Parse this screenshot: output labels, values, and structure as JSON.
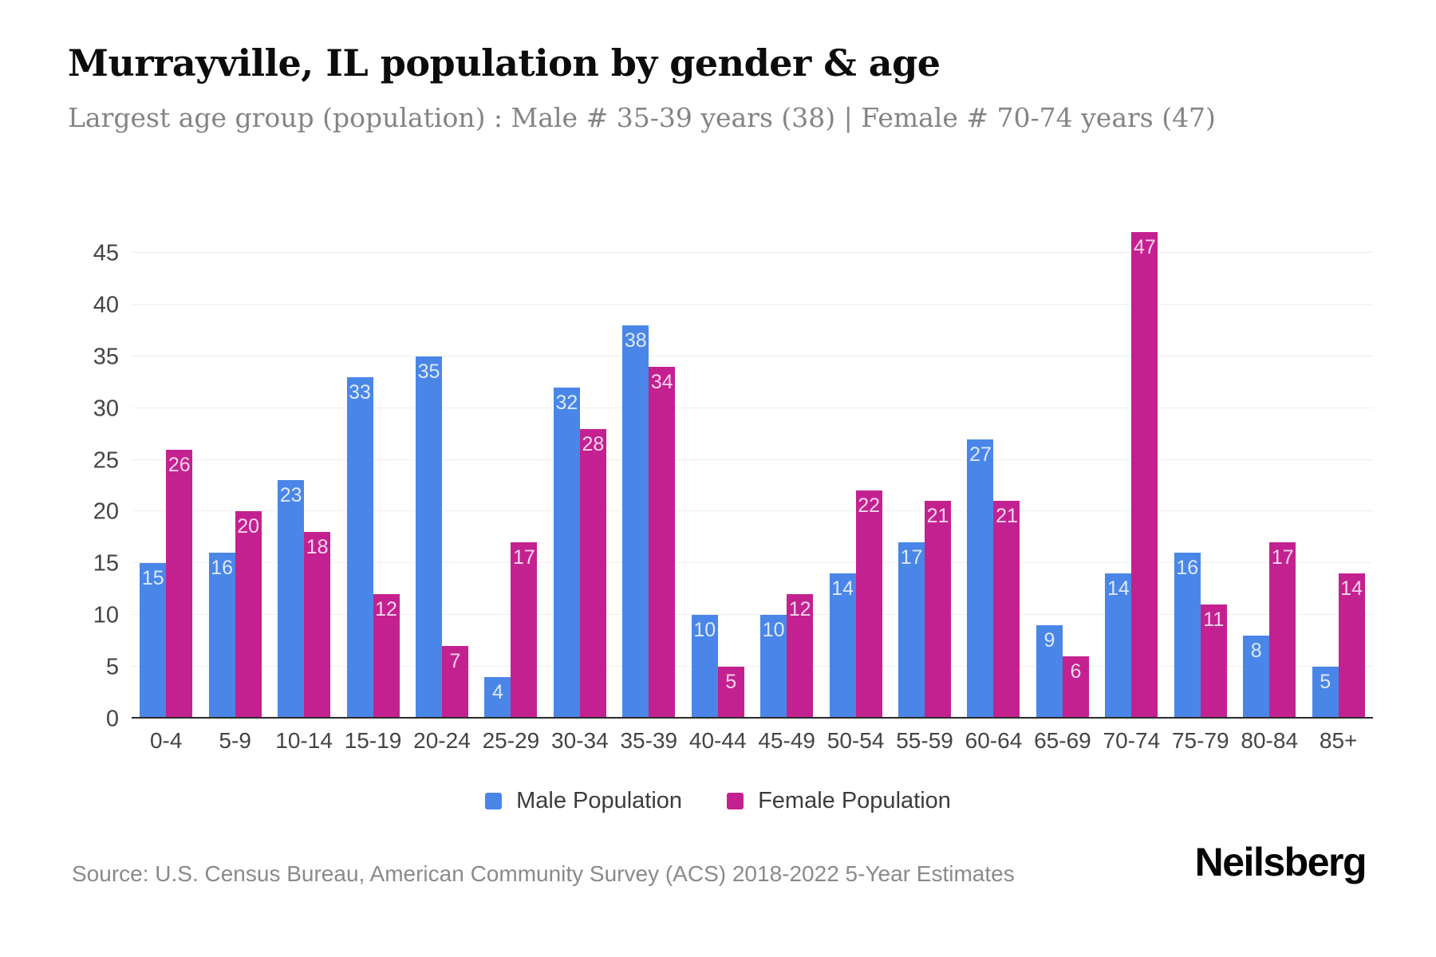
{
  "header": {
    "title": "Murrayville, IL population by gender & age",
    "subtitle": "Largest age group (population) : Male # 35-39 years (38) | Female # 70-74 years (47)"
  },
  "chart_data": {
    "type": "bar",
    "categories": [
      "0-4",
      "5-9",
      "10-14",
      "15-19",
      "20-24",
      "25-29",
      "30-34",
      "35-39",
      "40-44",
      "45-49",
      "50-54",
      "55-59",
      "60-64",
      "65-69",
      "70-74",
      "75-79",
      "80-84",
      "85+"
    ],
    "series": [
      {
        "name": "Male Population",
        "color": "#4a86e8",
        "values": [
          15,
          16,
          23,
          33,
          35,
          4,
          32,
          38,
          10,
          10,
          14,
          17,
          27,
          9,
          14,
          16,
          8,
          5
        ]
      },
      {
        "name": "Female Population",
        "color": "#c42190",
        "values": [
          26,
          20,
          18,
          12,
          7,
          17,
          28,
          34,
          5,
          12,
          22,
          21,
          21,
          6,
          47,
          11,
          17,
          14
        ]
      }
    ],
    "title": "Murrayville, IL population by gender & age",
    "xlabel": "",
    "ylabel": "",
    "ylim": [
      0,
      48
    ],
    "yticks": [
      0,
      5,
      10,
      15,
      20,
      25,
      30,
      35,
      40,
      45
    ],
    "grid": "horizontal",
    "legend_position": "bottom"
  },
  "legend": {
    "male_label": "Male Population",
    "female_label": "Female Population"
  },
  "footer": {
    "source": "Source: U.S. Census Bureau, American Community Survey (ACS) 2018-2022 5-Year Estimates",
    "brand": "Neilsberg"
  },
  "colors": {
    "male": "#4a86e8",
    "female": "#c42190",
    "grid": "#efefef",
    "axis": "#2b2b2b"
  }
}
